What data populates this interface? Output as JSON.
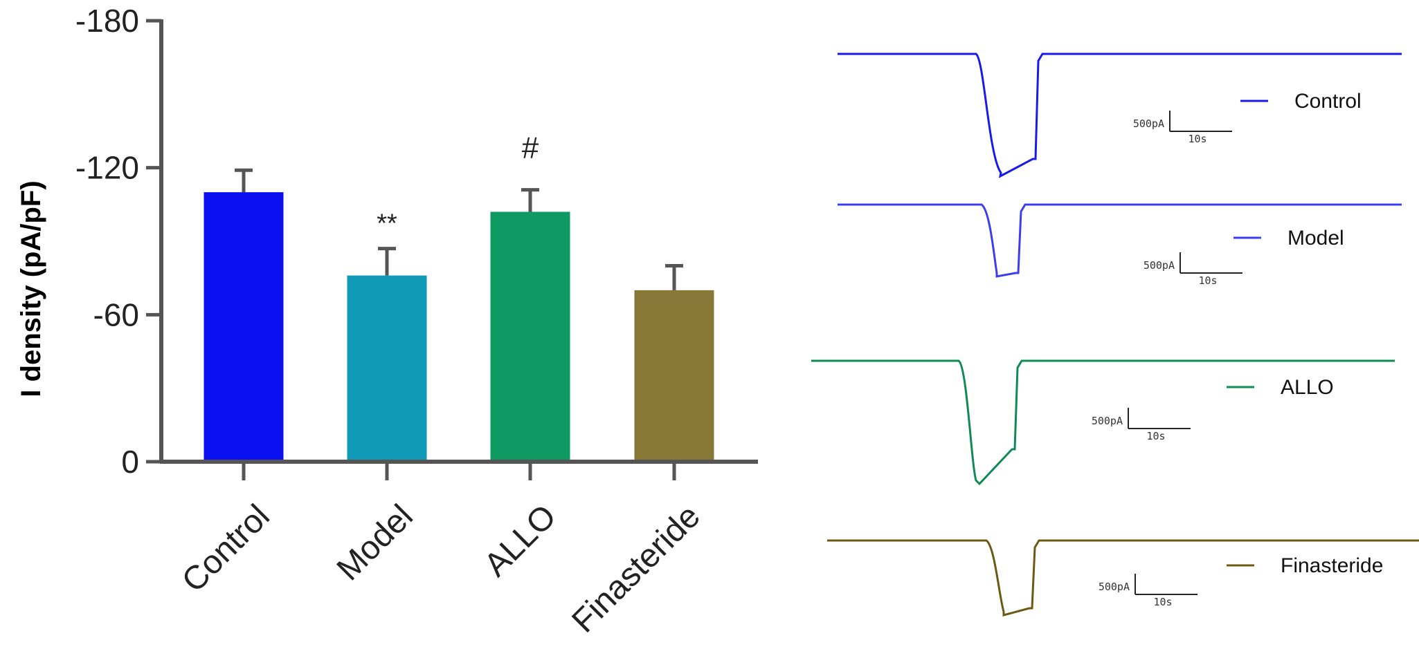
{
  "chart_data": [
    {
      "type": "bar",
      "ylabel": "I density (pA/pF)",
      "ylim": [
        0,
        -180
      ],
      "y_inverted": true,
      "yticks": [
        "-180",
        "-120",
        "-60",
        "0"
      ],
      "ytick_values": [
        -180,
        -120,
        -60,
        0
      ],
      "categories": [
        "Control",
        "Model",
        "ALLO",
        "Finasteride"
      ],
      "values": [
        -110,
        -76,
        -102,
        -70
      ],
      "errors": [
        9,
        11,
        9,
        10
      ],
      "colors": [
        "#0a0ff0",
        "#1199b8",
        "#109a63",
        "#887838"
      ],
      "annotations": [
        "",
        "**",
        "#",
        ""
      ],
      "grid": false
    },
    {
      "type": "line",
      "traces": [
        {
          "name": "Control",
          "color": "#1a1ae8",
          "scale_current": "500pA",
          "scale_time": "10s"
        },
        {
          "name": "Model",
          "color": "#3d3df0",
          "scale_current": "500pA",
          "scale_time": "10s"
        },
        {
          "name": "ALLO",
          "color": "#0f8a55",
          "scale_current": "500pA",
          "scale_time": "10s"
        },
        {
          "name": "Finasteride",
          "color": "#6b5a14",
          "scale_current": "500pA",
          "scale_time": "10s"
        }
      ]
    }
  ]
}
